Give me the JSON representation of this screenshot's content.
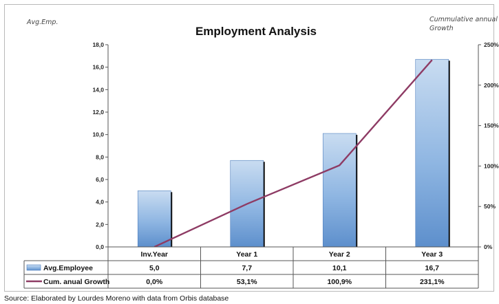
{
  "chart_data": {
    "type": "bar",
    "title": "Employment Analysis",
    "ylabel": "Avg.Emp.",
    "y2label": "Cummulative annual Growth",
    "categories": [
      "Inv.Year",
      "Year 1",
      "Year 2",
      "Year 3"
    ],
    "ylim": [
      0,
      18
    ],
    "y2lim": [
      0,
      250
    ],
    "yticks": [
      "0,0",
      "2,0",
      "4,0",
      "6,0",
      "8,0",
      "10,0",
      "12,0",
      "14,0",
      "16,0",
      "18,0"
    ],
    "y2ticks": [
      "0%",
      "50%",
      "100%",
      "150%",
      "200%",
      "250%"
    ],
    "grid": false,
    "legend": "data table below axis",
    "series": [
      {
        "name": "Avg.Employee",
        "type": "bar",
        "axis": "left",
        "color": "#6b9fd4",
        "values": [
          5.0,
          7.7,
          10.1,
          16.7
        ],
        "labels": [
          "5,0",
          "7,7",
          "10,1",
          "16,7"
        ]
      },
      {
        "name": "Cum. anual Growth",
        "type": "line",
        "axis": "right",
        "color": "#8e3b64",
        "values": [
          0.0,
          53.1,
          100.9,
          231.1
        ],
        "labels": [
          "0,0%",
          "53,1%",
          "100,9%",
          "231,1%"
        ]
      }
    ]
  },
  "source_note": "Source: Elaborated by Lourdes Moreno with data from Orbis database"
}
